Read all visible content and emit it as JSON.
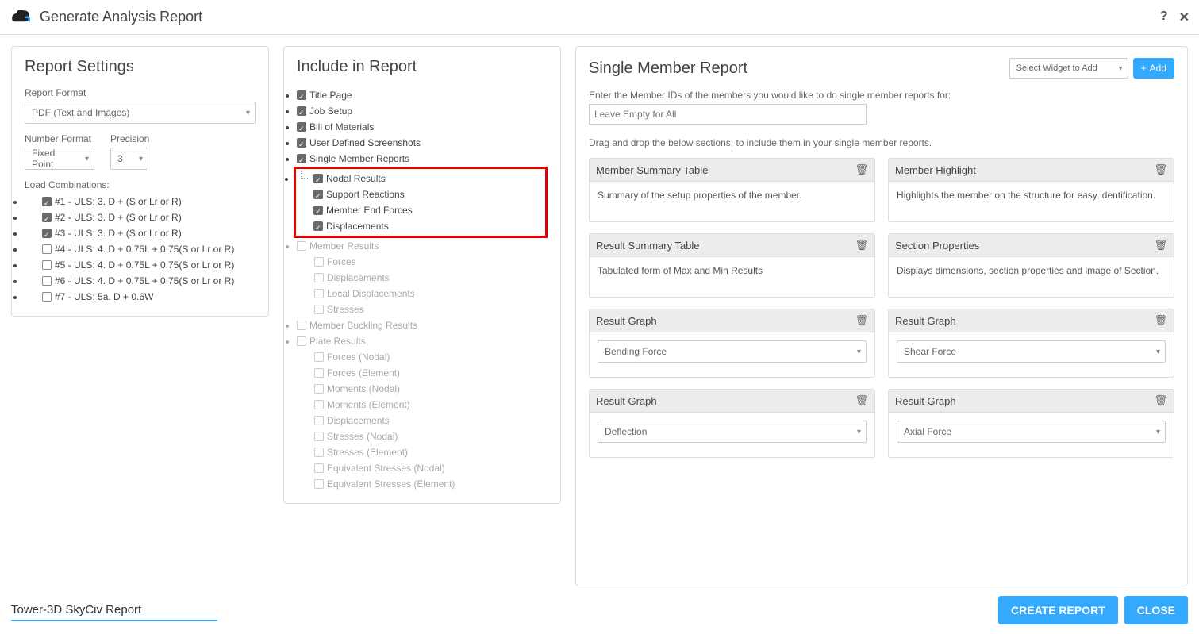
{
  "title": "Generate Analysis Report",
  "settings": {
    "heading": "Report Settings",
    "format_label": "Report Format",
    "format_value": "PDF (Text and Images)",
    "number_label": "Number Format",
    "number_value": "Fixed Point",
    "precision_label": "Precision",
    "precision_value": "3",
    "lc_label": "Load Combinations:",
    "lc": [
      {
        "label": "#1 - ULS: 3. D + (S or Lr or R)",
        "checked": true
      },
      {
        "label": "#2 - ULS: 3. D + (S or Lr or R)",
        "checked": true
      },
      {
        "label": "#3 - ULS: 3. D + (S or Lr or R)",
        "checked": true
      },
      {
        "label": "#4 - ULS: 4. D + 0.75L + 0.75(S or Lr or R)",
        "checked": false
      },
      {
        "label": "#5 - ULS: 4. D + 0.75L + 0.75(S or Lr or R)",
        "checked": false
      },
      {
        "label": "#6 - ULS: 4. D + 0.75L + 0.75(S or Lr or R)",
        "checked": false
      },
      {
        "label": "#7 - ULS: 5a. D + 0.6W",
        "checked": false
      }
    ]
  },
  "include": {
    "heading": "Include in Report",
    "items": {
      "title_page": {
        "label": "Title Page",
        "checked": true
      },
      "job_setup": {
        "label": "Job Setup",
        "checked": true
      },
      "bom": {
        "label": "Bill of Materials",
        "checked": true
      },
      "uds": {
        "label": "User Defined Screenshots",
        "checked": true
      },
      "smr": {
        "label": "Single Member Reports",
        "checked": true
      },
      "nodal": {
        "label": "Nodal Results",
        "checked": true,
        "children": [
          {
            "label": "Support Reactions",
            "checked": true
          },
          {
            "label": "Member End Forces",
            "checked": true
          },
          {
            "label": "Displacements",
            "checked": true
          }
        ]
      },
      "member": {
        "label": "Member Results",
        "checked": false,
        "disabled": true,
        "children": [
          {
            "label": "Forces"
          },
          {
            "label": "Displacements"
          },
          {
            "label": "Local Displacements"
          },
          {
            "label": "Stresses"
          }
        ]
      },
      "buckling": {
        "label": "Member Buckling Results",
        "checked": false,
        "disabled": true
      },
      "plate": {
        "label": "Plate Results",
        "checked": false,
        "disabled": true,
        "children": [
          {
            "label": "Forces (Nodal)"
          },
          {
            "label": "Forces (Element)"
          },
          {
            "label": "Moments (Nodal)"
          },
          {
            "label": "Moments (Element)"
          },
          {
            "label": "Displacements"
          },
          {
            "label": "Stresses (Nodal)"
          },
          {
            "label": "Stresses (Element)"
          },
          {
            "label": "Equivalent Stresses (Nodal)"
          },
          {
            "label": "Equivalent Stresses (Element)"
          }
        ]
      }
    }
  },
  "smr": {
    "heading": "Single Member Report",
    "widget_placeholder": "Select Widget to Add",
    "add_label": "Add",
    "hint": "Enter the Member IDs of the members you would like to do single member reports for:",
    "input_placeholder": "Leave Empty for All",
    "drag_hint": "Drag and drop the below sections, to include them in your single member reports.",
    "widgets": [
      {
        "title": "Member Summary Table",
        "desc": "Summary of the setup properties of the member."
      },
      {
        "title": "Member Highlight",
        "desc": "Highlights the member on the structure for easy identification."
      },
      {
        "title": "Result Summary Table",
        "desc": "Tabulated form of Max and Min Results"
      },
      {
        "title": "Section Properties",
        "desc": "Displays dimensions, section properties and image of Section."
      },
      {
        "title": "Result Graph",
        "select": "Bending Force"
      },
      {
        "title": "Result Graph",
        "select": "Shear Force"
      },
      {
        "title": "Result Graph",
        "select": "Deflection"
      },
      {
        "title": "Result Graph",
        "select": "Axial Force"
      }
    ]
  },
  "footer": {
    "filename": "Tower-3D SkyCiv Report",
    "create": "CREATE REPORT",
    "close": "CLOSE"
  }
}
